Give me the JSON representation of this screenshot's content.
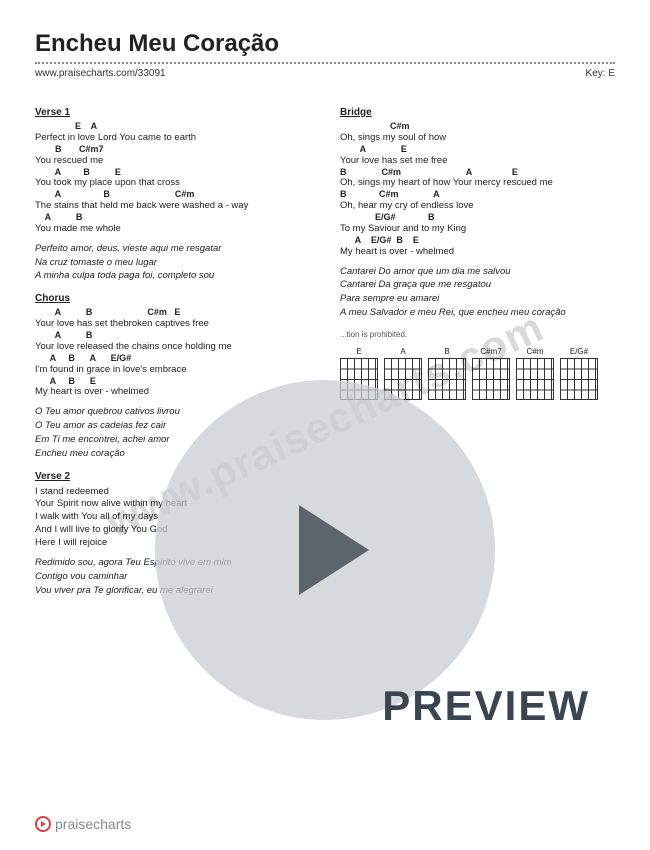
{
  "title": "Encheu Meu Coração",
  "source_url": "www.praisecharts.com/33091",
  "key_label": "Key: E",
  "watermark_text": "www.praisecharts.com",
  "preview_text": "PREVIEW",
  "footer_brand": "praisecharts",
  "copyright_note": "...tion is prohibited.",
  "columns": {
    "left": [
      {
        "type": "heading",
        "text": "Verse 1"
      },
      {
        "type": "chords",
        "text": "                E    A"
      },
      {
        "type": "lyric",
        "text": "Perfect in love Lord You came to earth"
      },
      {
        "type": "chords",
        "text": "        B       C#m7"
      },
      {
        "type": "lyric",
        "text": "You rescued  me"
      },
      {
        "type": "chords",
        "text": "        A         B          E"
      },
      {
        "type": "lyric",
        "text": "You took my place upon that cross"
      },
      {
        "type": "chords",
        "text": "        A                 B                          C#m"
      },
      {
        "type": "lyric",
        "text": "The stains that held me back were washed a - way"
      },
      {
        "type": "chords",
        "text": "    A          B"
      },
      {
        "type": "lyric",
        "text": "You made me whole"
      },
      {
        "type": "italicblock",
        "lines": [
          "Perfeito amor, deus, vieste aqui me resgatar",
          "Na cruz tomaste o meu lugar",
          "A minha culpa toda paga foi, completo sou"
        ]
      },
      {
        "type": "heading",
        "text": "Chorus"
      },
      {
        "type": "chords",
        "text": "        A          B                      C#m   E"
      },
      {
        "type": "lyric",
        "text": "Your love has set thebroken captives   free"
      },
      {
        "type": "chords",
        "text": "        A          B"
      },
      {
        "type": "lyric",
        "text": "Your love released the chains once holding me"
      },
      {
        "type": "chords",
        "text": "      A     B      A      E/G#"
      },
      {
        "type": "lyric",
        "text": "I'm found in grace in love's embrace"
      },
      {
        "type": "chords",
        "text": "      A     B      E"
      },
      {
        "type": "lyric",
        "text": "My heart is over - whelmed"
      },
      {
        "type": "italicblock",
        "lines": [
          "O Teu amor quebrou cativos livrou",
          "O Teu amor as cadeias fez cair",
          "Em Ti me encontrei, achei amor",
          "Encheu meu coração"
        ]
      },
      {
        "type": "heading",
        "text": "Verse 2"
      },
      {
        "type": "lyric",
        "text": "I stand redeemed"
      },
      {
        "type": "lyric",
        "text": "Your Spirit now alive within my heart"
      },
      {
        "type": "lyric",
        "text": "I walk with You all of my days"
      },
      {
        "type": "lyric",
        "text": "And I will live to glorify You God"
      },
      {
        "type": "lyric",
        "text": "Here I will rejoice"
      },
      {
        "type": "italicblock",
        "lines": [
          "Redimido sou, agora Teu Espírito vive em mim",
          "Contigo vou caminhar",
          "Vou viver pra Te glorificar, eu me alegrarei"
        ]
      }
    ],
    "right": [
      {
        "type": "heading",
        "text": "Bridge"
      },
      {
        "type": "chords",
        "text": "                    C#m"
      },
      {
        "type": "lyric",
        "text": "Oh, sings my soul of how"
      },
      {
        "type": "chords",
        "text": "        A              E"
      },
      {
        "type": "lyric",
        "text": "Your love has set me free"
      },
      {
        "type": "chords",
        "text": "B              C#m                          A                E"
      },
      {
        "type": "lyric",
        "text": "Oh, sings my heart of how Your mercy rescued me"
      },
      {
        "type": "chords",
        "text": "B             C#m              A"
      },
      {
        "type": "lyric",
        "text": "Oh, hear my  cry  of endless love"
      },
      {
        "type": "chords",
        "text": "              E/G#             B"
      },
      {
        "type": "lyric",
        "text": "To my Saviour and to my King"
      },
      {
        "type": "chords",
        "text": "      A    E/G#  B    E"
      },
      {
        "type": "lyric",
        "text": "My heart   is   over - whelmed"
      },
      {
        "type": "italicblock",
        "lines": [
          "Cantarei Do amor que um dia me salvou",
          "Cantarei Da graça que me resgatou",
          "Para sempre eu amarei",
          "A meu Salvador e meu Rei, que encheu meu coração"
        ]
      }
    ]
  },
  "chord_diagrams": [
    "E",
    "A",
    "B",
    "C#m7",
    "C#m",
    "E/G#"
  ]
}
